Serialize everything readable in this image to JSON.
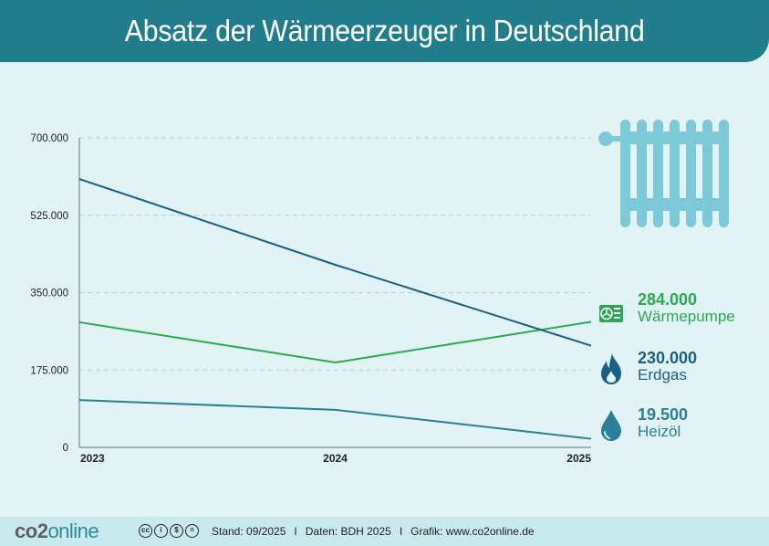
{
  "header": {
    "title": "Absatz der Wärmeerzeuger in Deutschland"
  },
  "colors": {
    "header_bg": "#217d8b",
    "background": "#e1f3f4",
    "waermepumpe": "#2aa952",
    "erdgas": "#1a5f84",
    "heizoel": "#2b7f98",
    "radiator": "#7dc9d8"
  },
  "chart_data": {
    "type": "line",
    "title": "Absatz der Wärmeerzeuger in Deutschland",
    "xlabel": "",
    "ylabel": "",
    "x": [
      "2023",
      "2024",
      "2025"
    ],
    "ylim": [
      0,
      700000
    ],
    "yticks": [
      0,
      175000,
      350000,
      525000,
      700000
    ],
    "ytick_labels": [
      "0",
      "175.000",
      "350.000",
      "525.000",
      "700.000"
    ],
    "grid": "horizontal dashed",
    "series": [
      {
        "name": "Wärmepumpe",
        "values": [
          283000,
          192000,
          284000
        ],
        "end_label": "284.000",
        "color": "#2aa952",
        "icon": "heat-pump-icon"
      },
      {
        "name": "Erdgas",
        "values": [
          607000,
          413000,
          230000
        ],
        "end_label": "230.000",
        "color": "#1a5f84",
        "icon": "flame-icon"
      },
      {
        "name": "Heizöl",
        "values": [
          107000,
          85000,
          19500
        ],
        "end_label": "19.500",
        "color": "#2b7f98",
        "icon": "oil-drop-icon"
      }
    ],
    "legend_placement": "right",
    "decoration": "radiator-icon"
  },
  "footer": {
    "logo_part1": "co",
    "logo_part2": "2",
    "logo_part3": "online",
    "license_icons": [
      "cc",
      "by",
      "nc",
      "nd"
    ],
    "license_glyphs": [
      "cc",
      "i",
      "$",
      "="
    ],
    "stand": "Stand: 09/2025",
    "daten": "Daten: BDH 2025",
    "grafik": "Grafik: www.co2online.de",
    "separator": "I"
  }
}
